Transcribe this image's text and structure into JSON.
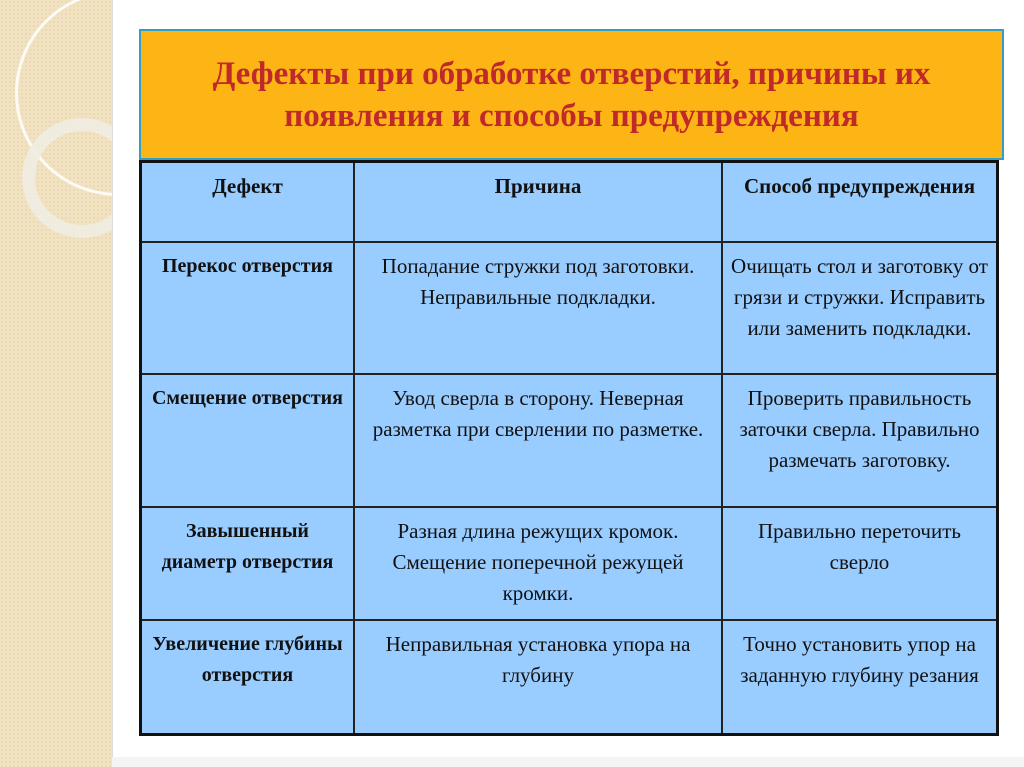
{
  "title": "Дефекты при обработке отверстий, причины их появления и способы предупреждения",
  "colors": {
    "title_bg": "#fdb515",
    "title_text": "#c0282a",
    "table_bg": "#99ccff"
  },
  "table": {
    "headers": [
      "Дефект",
      "Причина",
      "Способ предупреждения"
    ],
    "rows": [
      [
        "Перекос отверстия",
        "Попадание стружки под заготовки. Неправильные подкладки.",
        "Очищать стол и заготовку от грязи и стружки. Исправить или заменить подкладки."
      ],
      [
        "Смещение отверстия",
        "Увод сверла в сторону. Неверная разметка при сверлении по разметке.",
        "Проверить правильность заточки сверла. Правильно размечать заготовку."
      ],
      [
        "Завышенный диаметр отверстия",
        "Разная длина режущих кромок. Смещение поперечной режущей кромки.",
        "Правильно переточить сверло"
      ],
      [
        "Увеличение глубины отверстия",
        "Неправильная установка упора на глубину",
        "Точно установить упор на заданную глубину резания"
      ]
    ]
  }
}
